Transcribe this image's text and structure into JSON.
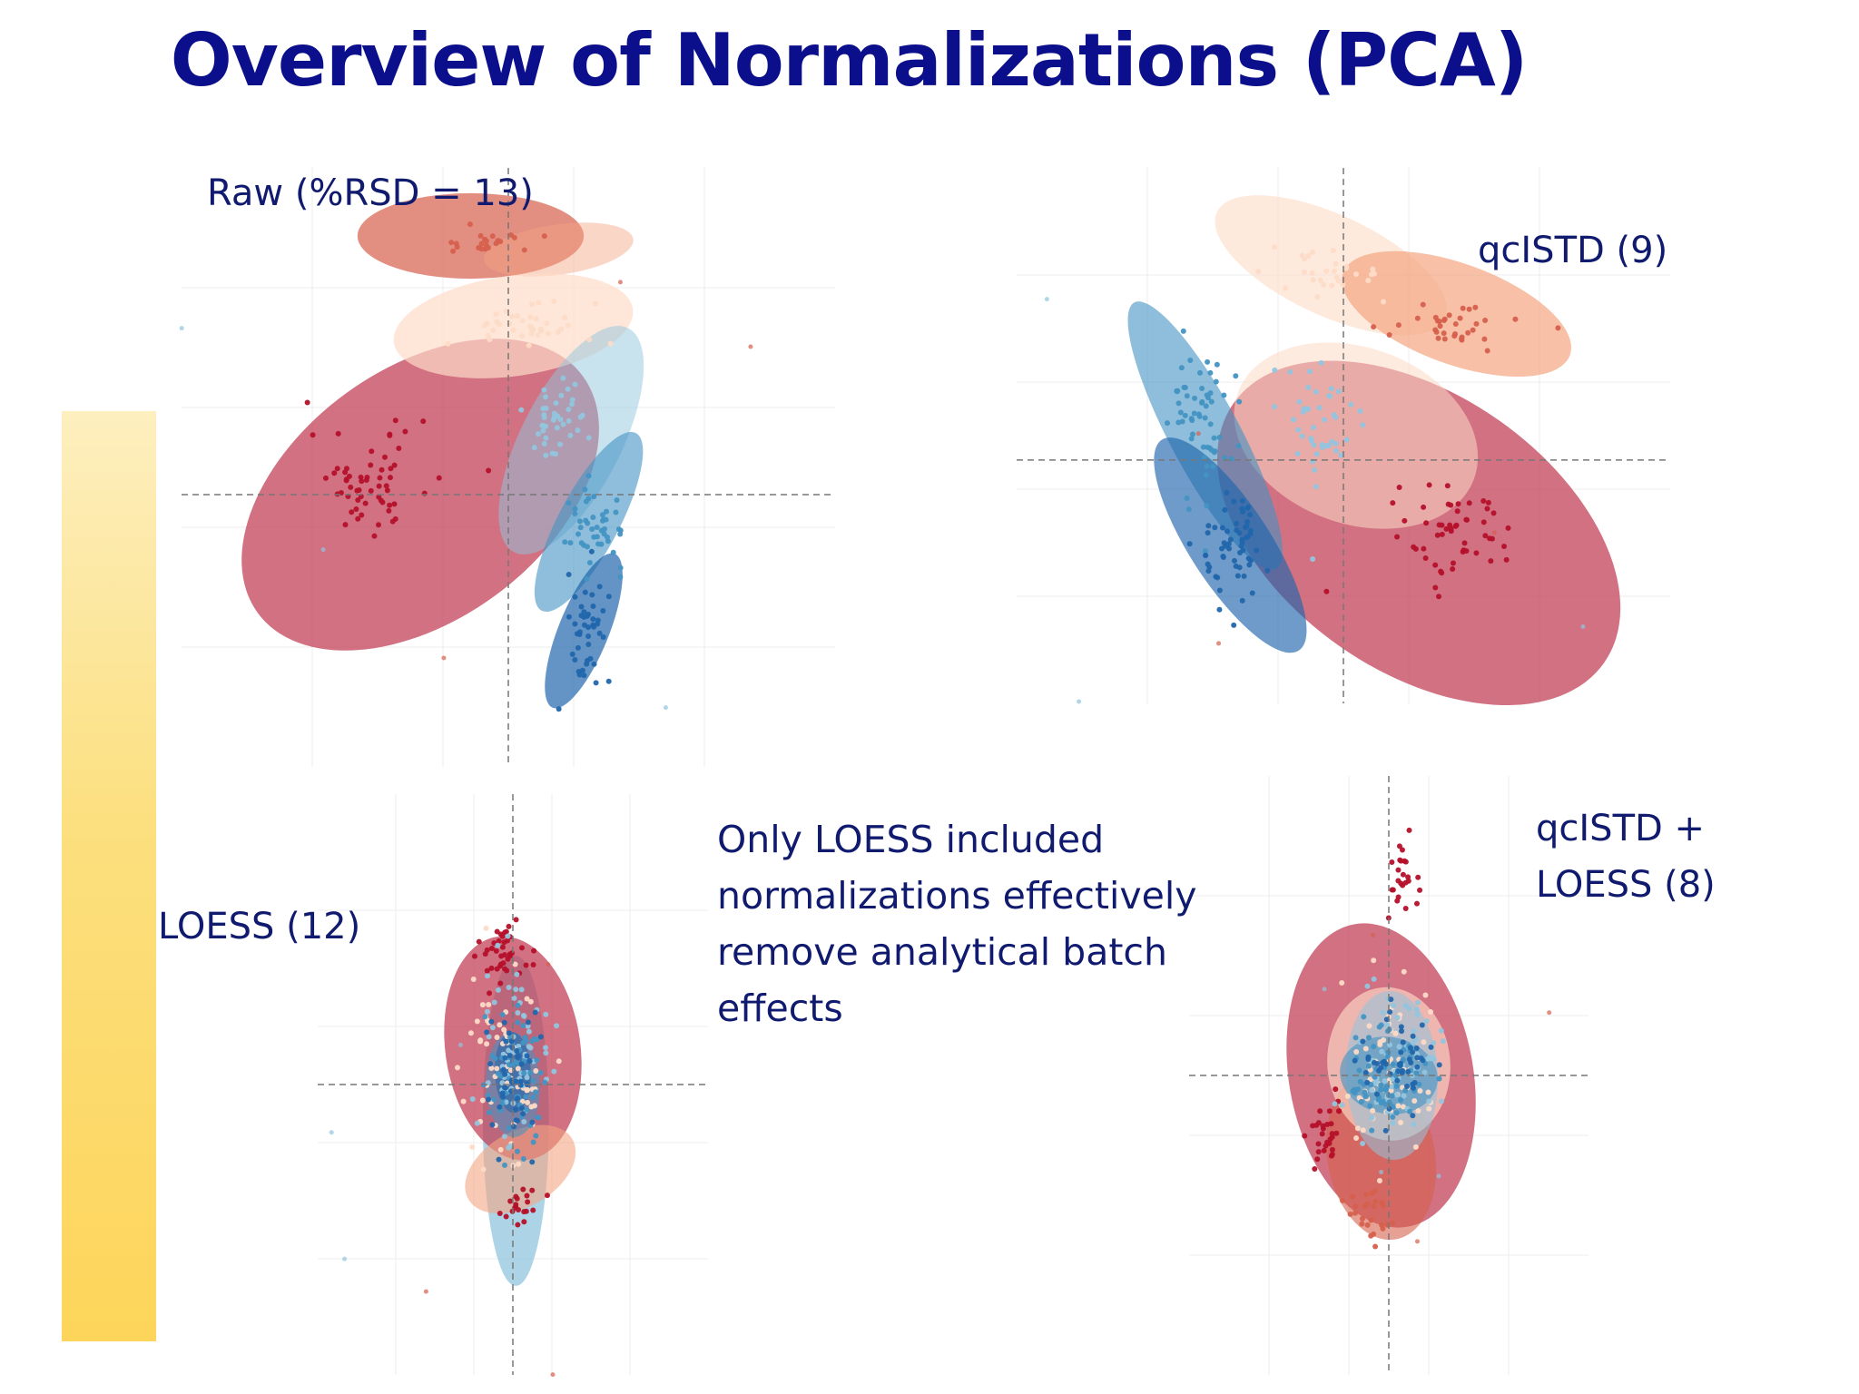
{
  "slide": {
    "title": "Overview of Normalizations (PCA)",
    "accent_bar_colors": [
      "#fdefbf",
      "#fdd55a"
    ],
    "title_color": "#0b0f8c",
    "label_color": "#101a6e"
  },
  "legend_palette": {
    "dark_red": "#b5102a",
    "red": "#d6604d",
    "light_orange": "#f4a582",
    "pale": "#fddbc7",
    "light_blue": "#92c5de",
    "blue": "#4393c3",
    "dark_blue": "#2166ac",
    "ellipse_red": "#c24158"
  },
  "annotation": {
    "lines": [
      "Only LOESS included",
      "normalizations effectively",
      "remove analytical batch",
      "effects"
    ]
  },
  "chart_data": [
    {
      "type": "scatter",
      "label": "Raw (%RSD = 13)",
      "rsd": 13,
      "groups": [
        {
          "color": "dark_red",
          "cx": -0.55,
          "cy": 0.05,
          "spread_x": 0.22,
          "spread_y": 0.18,
          "n": 60
        },
        {
          "color": "red",
          "cx": -0.1,
          "cy": 0.92,
          "spread_x": 0.18,
          "spread_y": 0.04,
          "n": 22
        },
        {
          "color": "pale",
          "cx": 0.05,
          "cy": 0.62,
          "spread_x": 0.28,
          "spread_y": 0.08,
          "n": 40
        },
        {
          "color": "light_blue",
          "cx": 0.2,
          "cy": 0.28,
          "spread_x": 0.12,
          "spread_y": 0.15,
          "n": 40
        },
        {
          "color": "blue",
          "cx": 0.35,
          "cy": -0.12,
          "spread_x": 0.1,
          "spread_y": 0.14,
          "n": 45
        },
        {
          "color": "dark_blue",
          "cx": 0.32,
          "cy": -0.48,
          "spread_x": 0.08,
          "spread_y": 0.16,
          "n": 45
        }
      ],
      "ellipses": [
        {
          "color": "ellipse_red",
          "cx": -0.35,
          "cy": 0.0,
          "rx": 0.8,
          "ry": 0.5,
          "angle": -36,
          "opacity": 0.75
        },
        {
          "color": "red",
          "cx": -0.15,
          "cy": 0.95,
          "rx": 0.45,
          "ry": 0.17,
          "angle": 0,
          "opacity": 0.7
        },
        {
          "color": "light_orange",
          "cx": 0.2,
          "cy": 0.9,
          "rx": 0.3,
          "ry": 0.1,
          "angle": -8,
          "opacity": 0.45
        },
        {
          "color": "pale",
          "cx": 0.02,
          "cy": 0.62,
          "rx": 0.48,
          "ry": 0.2,
          "angle": -8,
          "opacity": 0.7
        },
        {
          "color": "light_blue",
          "cx": 0.25,
          "cy": 0.2,
          "rx": 0.5,
          "ry": 0.2,
          "angle": -63,
          "opacity": 0.5
        },
        {
          "color": "blue",
          "cx": 0.32,
          "cy": -0.1,
          "rx": 0.4,
          "ry": 0.12,
          "angle": -62,
          "opacity": 0.6
        },
        {
          "color": "dark_blue",
          "cx": 0.3,
          "cy": -0.5,
          "rx": 0.33,
          "ry": 0.1,
          "angle": -68,
          "opacity": 0.7
        }
      ],
      "xlim": [
        -1.3,
        1.3
      ],
      "ylim": [
        -1.0,
        1.2
      ],
      "axes_lines": true
    },
    {
      "type": "scatter",
      "label": "qcISTD (9)",
      "rsd": 9,
      "groups": [
        {
          "color": "dark_red",
          "cx": 0.45,
          "cy": -0.3,
          "spread_x": 0.22,
          "spread_y": 0.18,
          "n": 55
        },
        {
          "color": "red",
          "cx": 0.42,
          "cy": 0.55,
          "spread_x": 0.25,
          "spread_y": 0.08,
          "n": 35
        },
        {
          "color": "pale",
          "cx": -0.05,
          "cy": 0.75,
          "spread_x": 0.22,
          "spread_y": 0.1,
          "n": 30
        },
        {
          "color": "light_blue",
          "cx": -0.1,
          "cy": 0.15,
          "spread_x": 0.18,
          "spread_y": 0.25,
          "n": 45
        },
        {
          "color": "blue",
          "cx": -0.55,
          "cy": 0.15,
          "spread_x": 0.12,
          "spread_y": 0.3,
          "n": 60
        },
        {
          "color": "dark_blue",
          "cx": -0.45,
          "cy": -0.35,
          "spread_x": 0.12,
          "spread_y": 0.25,
          "n": 60
        }
      ],
      "ellipses": [
        {
          "color": "ellipse_red",
          "cx": 0.3,
          "cy": -0.3,
          "rx": 0.9,
          "ry": 0.55,
          "angle": 35,
          "opacity": 0.75
        },
        {
          "color": "pale",
          "cx": -0.05,
          "cy": 0.8,
          "rx": 0.5,
          "ry": 0.2,
          "angle": 25,
          "opacity": 0.6
        },
        {
          "color": "light_orange",
          "cx": 0.45,
          "cy": 0.6,
          "rx": 0.48,
          "ry": 0.2,
          "angle": 20,
          "opacity": 0.7
        },
        {
          "color": "pale",
          "cx": 0.05,
          "cy": 0.1,
          "rx": 0.5,
          "ry": 0.35,
          "angle": 20,
          "opacity": 0.55
        },
        {
          "color": "blue",
          "cx": -0.55,
          "cy": 0.1,
          "rx": 0.6,
          "ry": 0.14,
          "angle": 62,
          "opacity": 0.6
        },
        {
          "color": "dark_blue",
          "cx": -0.45,
          "cy": -0.35,
          "rx": 0.5,
          "ry": 0.16,
          "angle": 57,
          "opacity": 0.65
        }
      ],
      "xlim": [
        -1.3,
        1.3
      ],
      "ylim": [
        -1.0,
        1.2
      ],
      "axes_lines": true
    },
    {
      "type": "scatter",
      "label": "LOESS (12)",
      "rsd": 12,
      "groups": [
        {
          "color": "dark_red",
          "cx": -0.05,
          "cy": 0.55,
          "spread_x": 0.15,
          "spread_y": 0.12,
          "n": 40
        },
        {
          "color": "dark_red",
          "cx": 0.05,
          "cy": -0.5,
          "spread_x": 0.12,
          "spread_y": 0.08,
          "n": 20
        },
        {
          "color": "pale",
          "cx": -0.05,
          "cy": 0.1,
          "spread_x": 0.25,
          "spread_y": 0.35,
          "n": 60
        },
        {
          "color": "light_blue",
          "cx": 0.0,
          "cy": 0.15,
          "spread_x": 0.2,
          "spread_y": 0.35,
          "n": 60
        },
        {
          "color": "blue",
          "cx": 0.0,
          "cy": 0.0,
          "spread_x": 0.18,
          "spread_y": 0.3,
          "n": 60
        },
        {
          "color": "dark_blue",
          "cx": 0.0,
          "cy": 0.05,
          "spread_x": 0.15,
          "spread_y": 0.25,
          "n": 45
        }
      ],
      "ellipses": [
        {
          "color": "light_blue",
          "cx": 0.02,
          "cy": -0.15,
          "rx": 0.22,
          "ry": 1.1,
          "angle": 0,
          "opacity": 0.75
        },
        {
          "color": "ellipse_red",
          "cx": 0.0,
          "cy": 0.15,
          "rx": 0.75,
          "ry": 0.45,
          "angle": 82,
          "opacity": 0.75
        },
        {
          "color": "light_orange",
          "cx": 0.05,
          "cy": -0.35,
          "rx": 0.4,
          "ry": 0.25,
          "angle": -30,
          "opacity": 0.6
        },
        {
          "color": "blue",
          "cx": 0.0,
          "cy": 0.0,
          "rx": 0.35,
          "ry": 0.18,
          "angle": 88,
          "opacity": 0.55
        },
        {
          "color": "dark_blue",
          "cx": 0.0,
          "cy": 0.05,
          "rx": 0.27,
          "ry": 0.12,
          "angle": 88,
          "opacity": 0.6
        }
      ],
      "xlim": [
        -1.3,
        1.3
      ],
      "ylim": [
        -1.2,
        1.2
      ],
      "axes_lines": true
    },
    {
      "type": "scatter",
      "label": "qcISTD + LOESS (8)",
      "rsd": 8,
      "groups": [
        {
          "color": "dark_red",
          "cx": 0.1,
          "cy": 0.85,
          "spread_x": 0.12,
          "spread_y": 0.15,
          "n": 25
        },
        {
          "color": "dark_red",
          "cx": -0.4,
          "cy": -0.25,
          "spread_x": 0.12,
          "spread_y": 0.12,
          "n": 30
        },
        {
          "color": "red",
          "cx": -0.15,
          "cy": -0.6,
          "spread_x": 0.15,
          "spread_y": 0.12,
          "n": 25
        },
        {
          "color": "pale",
          "cx": 0.0,
          "cy": 0.0,
          "spread_x": 0.28,
          "spread_y": 0.3,
          "n": 70
        },
        {
          "color": "light_blue",
          "cx": 0.05,
          "cy": 0.05,
          "spread_x": 0.25,
          "spread_y": 0.28,
          "n": 70
        },
        {
          "color": "blue",
          "cx": 0.0,
          "cy": 0.0,
          "spread_x": 0.22,
          "spread_y": 0.2,
          "n": 70
        },
        {
          "color": "dark_blue",
          "cx": 0.05,
          "cy": 0.05,
          "spread_x": 0.2,
          "spread_y": 0.18,
          "n": 50
        }
      ],
      "ellipses": [
        {
          "color": "ellipse_red",
          "cx": -0.05,
          "cy": 0.0,
          "rx": 1.0,
          "ry": 0.6,
          "angle": 80,
          "opacity": 0.75
        },
        {
          "color": "red",
          "cx": -0.05,
          "cy": -0.35,
          "rx": 0.55,
          "ry": 0.35,
          "angle": 80,
          "opacity": 0.6
        },
        {
          "color": "pale",
          "cx": 0.0,
          "cy": 0.05,
          "rx": 0.5,
          "ry": 0.4,
          "angle": 85,
          "opacity": 0.65
        },
        {
          "color": "light_blue",
          "cx": 0.02,
          "cy": 0.0,
          "rx": 0.55,
          "ry": 0.3,
          "angle": 88,
          "opacity": 0.55
        },
        {
          "color": "blue",
          "cx": 0.0,
          "cy": 0.0,
          "rx": 0.32,
          "ry": 0.25,
          "angle": 10,
          "opacity": 0.6
        }
      ],
      "xlim": [
        -1.3,
        1.3
      ],
      "ylim": [
        -1.3,
        1.3
      ],
      "axes_lines": true
    }
  ]
}
